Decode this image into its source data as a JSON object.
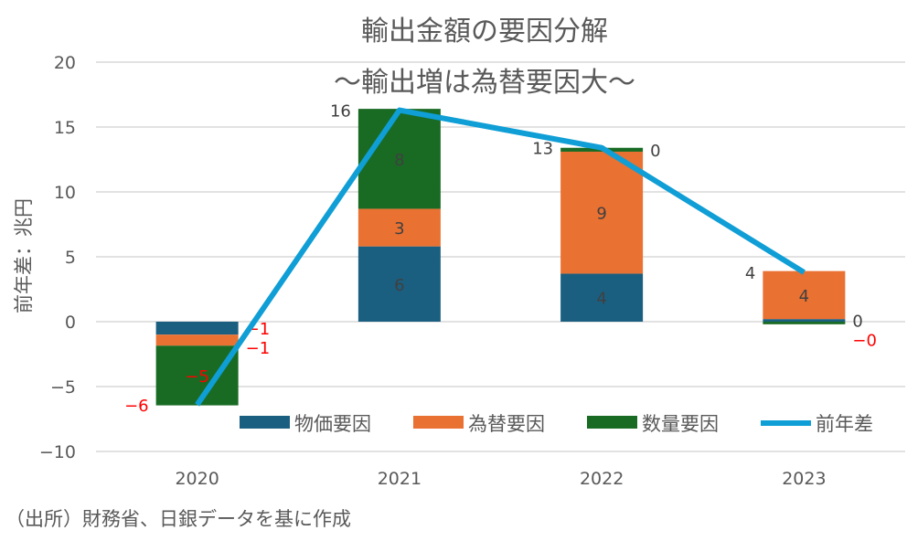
{
  "chart_data": {
    "type": "bar",
    "stacked": true,
    "title": "輸出金額の要因分解",
    "subtitle": "～輸出増は為替要因大～",
    "ylabel": "前年差：兆円",
    "xlabel": "",
    "ylim": [
      -10,
      20
    ],
    "yticks": [
      -10,
      -5,
      0,
      5,
      10,
      15,
      20
    ],
    "grid": true,
    "legend_position": "bottom-inside",
    "categories": [
      "2020",
      "2021",
      "2022",
      "2023"
    ],
    "series": [
      {
        "name": "物価要因",
        "type": "bar",
        "color": "#1a5f80",
        "values": [
          -1.0,
          5.8,
          3.7,
          0.2
        ],
        "labels": [
          "-1",
          "6",
          "4",
          "0"
        ]
      },
      {
        "name": "為替要因",
        "type": "bar",
        "color": "#e97132",
        "values": [
          -0.85,
          2.9,
          9.4,
          3.7
        ],
        "labels": [
          "-1",
          "3",
          "9",
          "4"
        ]
      },
      {
        "name": "数量要因",
        "type": "bar",
        "color": "#196b24",
        "values": [
          -4.6,
          7.7,
          0.3,
          -0.2
        ],
        "labels": [
          "-5",
          "8",
          "0",
          "-0"
        ]
      },
      {
        "name": "前年差",
        "type": "line",
        "color": "#0f9ed5",
        "values": [
          -6.4,
          16.3,
          13.4,
          3.8
        ],
        "labels": [
          "-6",
          "16",
          "13",
          "4"
        ]
      }
    ],
    "negative_label_color": "#ff0000"
  },
  "source_note": "（出所）財務省、日銀データを基に作成"
}
